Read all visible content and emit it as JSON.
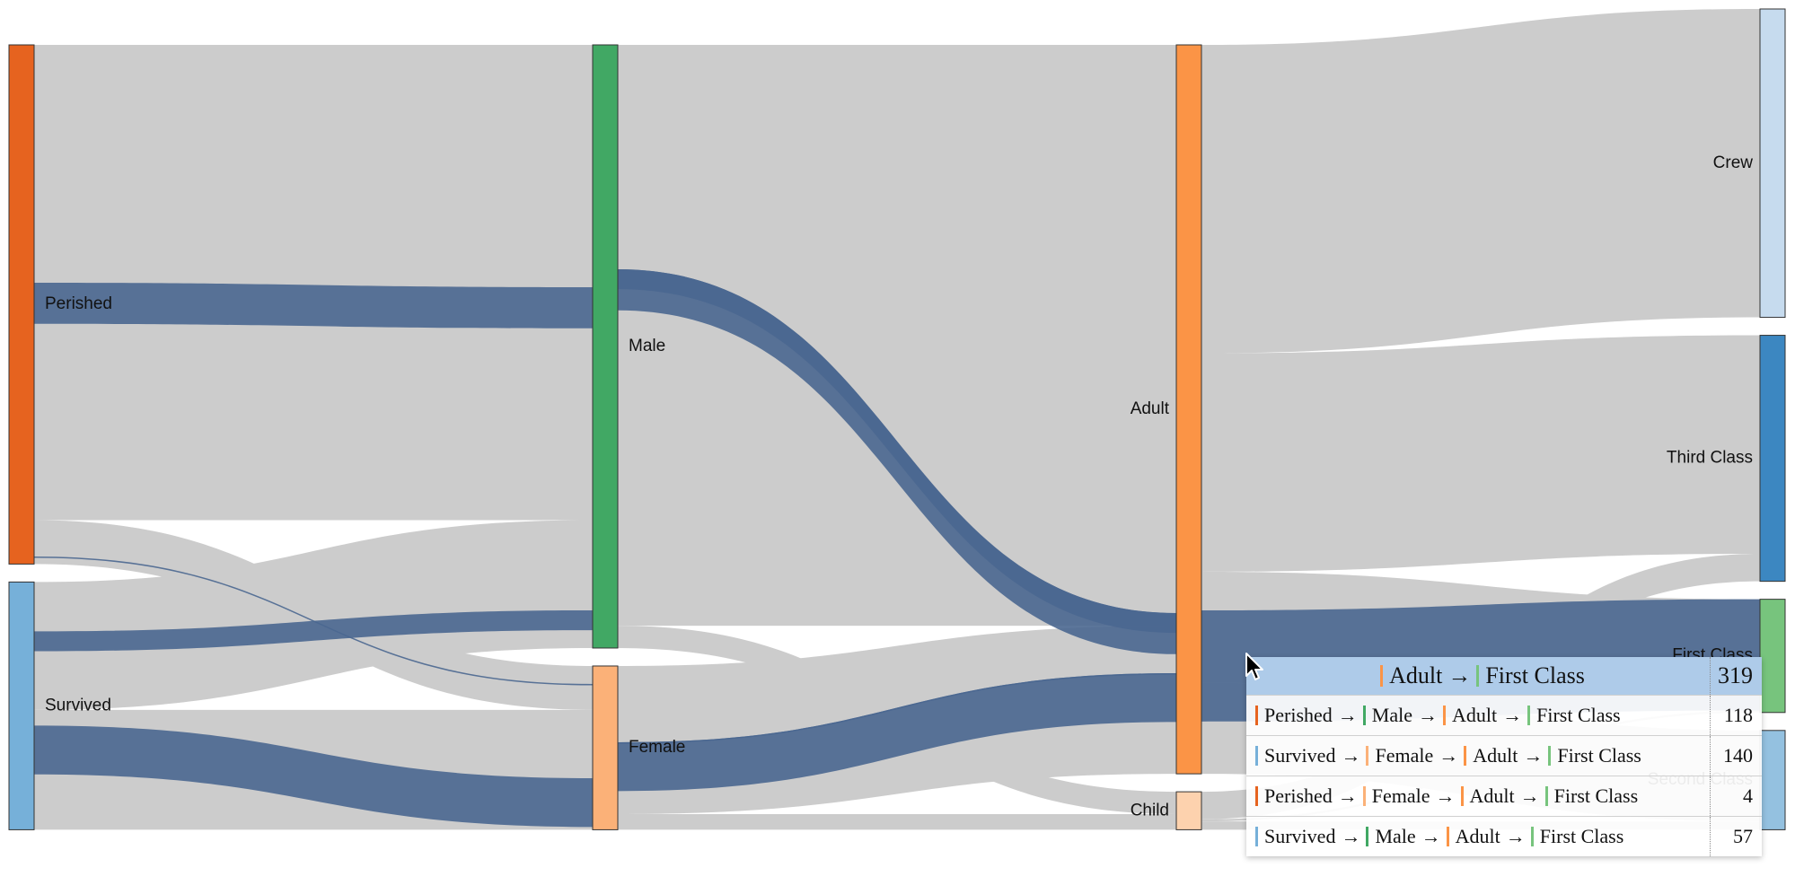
{
  "chart_data": {
    "type": "sankey",
    "total": 2201,
    "stages": [
      [
        "Perished",
        "Survived"
      ],
      [
        "Male",
        "Female"
      ],
      [
        "Adult",
        "Child"
      ],
      [
        "Crew",
        "Third Class",
        "First Class",
        "Second Class"
      ]
    ],
    "nodes": [
      {
        "name": "Perished",
        "value": 1490,
        "color": "#e6631f"
      },
      {
        "name": "Survived",
        "value": 711,
        "color": "#76b0d9"
      },
      {
        "name": "Male",
        "value": 1731,
        "color": "#41a864"
      },
      {
        "name": "Female",
        "value": 470,
        "color": "#fbb178"
      },
      {
        "name": "Adult",
        "value": 2092,
        "color": "#fb9446"
      },
      {
        "name": "Child",
        "value": 109,
        "color": "#fdd2ae"
      },
      {
        "name": "Crew",
        "value": 885,
        "color": "#c6dbee"
      },
      {
        "name": "Third Class",
        "value": 706,
        "color": "#3c87c1"
      },
      {
        "name": "First Class",
        "value": 325,
        "color": "#77c47d"
      },
      {
        "name": "Second Class",
        "value": 285,
        "color": "#94c1e0"
      }
    ],
    "highlighted_link": {
      "source": "Adult",
      "target": "First Class",
      "value": 319
    },
    "highlighted_paths": [
      {
        "path": [
          "Perished",
          "Male",
          "Adult",
          "First Class"
        ],
        "value": 118
      },
      {
        "path": [
          "Survived",
          "Female",
          "Adult",
          "First Class"
        ],
        "value": 140
      },
      {
        "path": [
          "Perished",
          "Female",
          "Adult",
          "First Class"
        ],
        "value": 4
      },
      {
        "path": [
          "Survived",
          "Male",
          "Adult",
          "First Class"
        ],
        "value": 57
      }
    ],
    "link_color": "#cccccc",
    "highlight_color": "#4a6790"
  },
  "tooltip": {
    "header": {
      "from": "Adult",
      "to": "First Class",
      "value": "319"
    },
    "rows": [
      {
        "steps": [
          "Perished",
          "Male",
          "Adult",
          "First Class"
        ],
        "value": "118"
      },
      {
        "steps": [
          "Survived",
          "Female",
          "Adult",
          "First Class"
        ],
        "value": "140"
      },
      {
        "steps": [
          "Perished",
          "Female",
          "Adult",
          "First Class"
        ],
        "value": "4"
      },
      {
        "steps": [
          "Survived",
          "Male",
          "Adult",
          "First Class"
        ],
        "value": "57"
      }
    ],
    "arrow": "→"
  }
}
